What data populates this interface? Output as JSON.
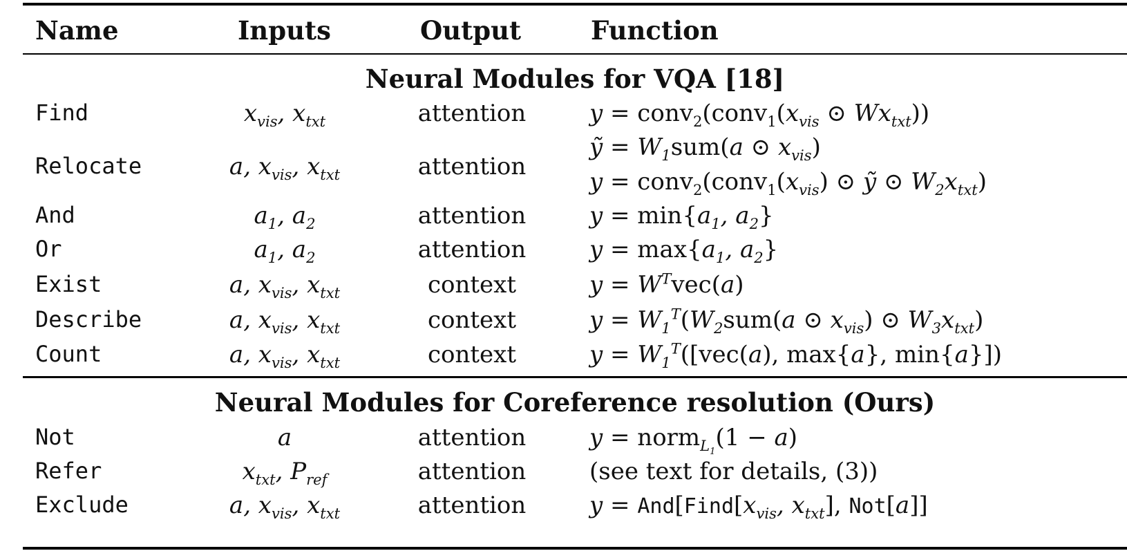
{
  "headers": {
    "name": "Name",
    "inputs": "Inputs",
    "output": "Output",
    "function": "Function"
  },
  "sections": [
    {
      "title": "Neural Modules for VQA [18]",
      "rows": [
        {
          "name": "Find",
          "inputs": "x_vis, x_txt",
          "output": "attention",
          "function": [
            "y = conv₂(conv₁(x_vis ⊙ W x_txt))"
          ]
        },
        {
          "name": "Relocate",
          "inputs": "a, x_vis, x_txt",
          "output": "attention",
          "function": [
            "ỹ = W₁sum(a ⊙ x_vis)",
            "y = conv₂(conv₁(x_vis) ⊙ ỹ ⊙ W₂x_txt)"
          ]
        },
        {
          "name": "And",
          "inputs": "a₁, a₂",
          "output": "attention",
          "function": [
            "y = min{a₁, a₂}"
          ]
        },
        {
          "name": "Or",
          "inputs": "a₁, a₂",
          "output": "attention",
          "function": [
            "y = max{a₁, a₂}"
          ]
        },
        {
          "name": "Exist",
          "inputs": "a, x_vis, x_txt",
          "output": "context",
          "function": [
            "y = Wᵀvec(a)"
          ]
        },
        {
          "name": "Describe",
          "inputs": "a, x_vis, x_txt",
          "output": "context",
          "function": [
            "y = W₁ᵀ(W₂sum(a ⊙ x_vis) ⊙ W₃x_txt)"
          ]
        },
        {
          "name": "Count",
          "inputs": "a, x_vis, x_txt",
          "output": "context",
          "function": [
            "y = W₁ᵀ([vec(a), max{a}, min{a}])"
          ]
        }
      ]
    },
    {
      "title": "Neural Modules for Coreference resolution (Ours)",
      "rows": [
        {
          "name": "Not",
          "inputs": "a",
          "output": "attention",
          "function": [
            "y = norm_L₁(1 − a)"
          ]
        },
        {
          "name": "Refer",
          "inputs": "x_txt, P_ref",
          "output": "attention",
          "function": [
            "(see text for details, (3))"
          ]
        },
        {
          "name": "Exclude",
          "inputs": "a, x_vis, x_txt",
          "output": "attention",
          "function": [
            "y = And[Find[x_vis, x_txt], Not[a]]"
          ]
        }
      ]
    }
  ]
}
